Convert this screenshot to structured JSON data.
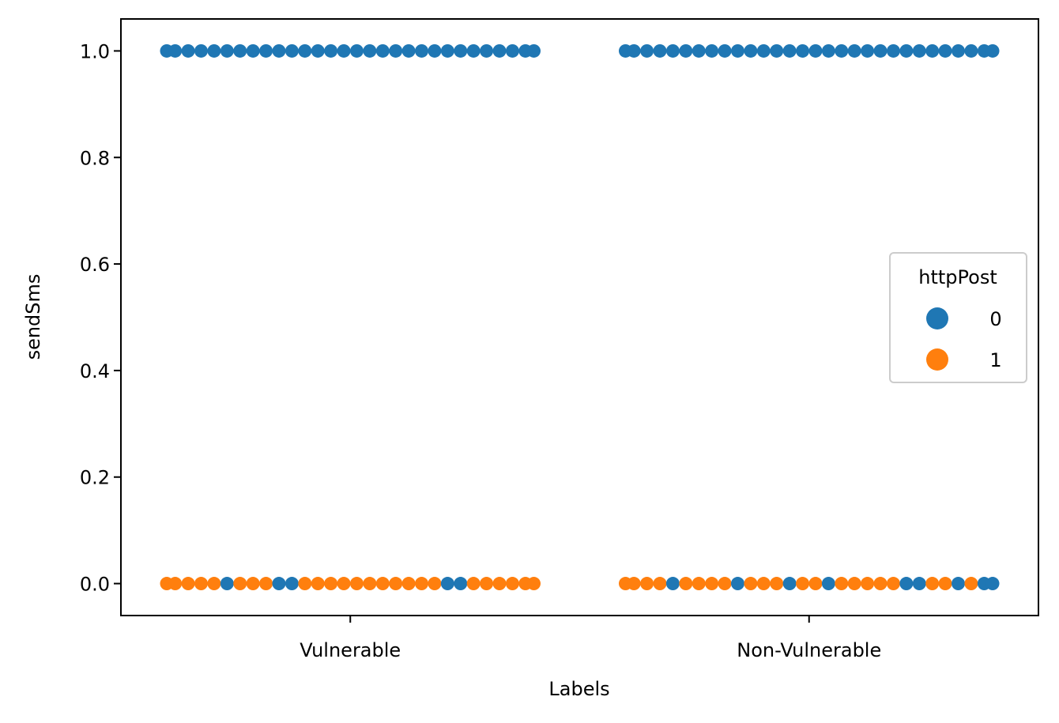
{
  "chart_data": {
    "type": "scatter",
    "subtype": "swarm",
    "title": "",
    "xlabel": "Labels",
    "ylabel": "sendSms",
    "categories": [
      "Vulnerable",
      "Non-Vulnerable"
    ],
    "ylim": [
      -0.06,
      1.06
    ],
    "yticks": [
      0.0,
      0.2,
      0.4,
      0.6,
      0.8,
      1.0
    ],
    "ytick_labels": [
      "0.0",
      "0.2",
      "0.4",
      "0.6",
      "0.8",
      "1.0"
    ],
    "grid": false,
    "legend": {
      "title": "httpPost",
      "placement": "center-right",
      "entries": [
        {
          "label": "0",
          "color": "#1f77b4"
        },
        {
          "label": "1",
          "color": "#ff7f0e"
        }
      ]
    },
    "series_colors": {
      "0": "#1f77b4",
      "1": "#ff7f0e"
    },
    "rows": [
      {
        "category": "Vulnerable",
        "sendSms": 1.0,
        "httpPost": [
          0,
          0,
          0,
          0,
          0,
          0,
          0,
          0,
          0,
          0,
          0,
          0,
          0,
          0,
          0,
          0,
          0,
          0,
          0,
          0,
          0,
          0,
          0,
          0,
          0,
          0,
          0,
          0,
          0,
          0
        ]
      },
      {
        "category": "Vulnerable",
        "sendSms": 0.0,
        "httpPost": [
          1,
          1,
          1,
          1,
          1,
          0,
          1,
          1,
          1,
          0,
          0,
          1,
          1,
          1,
          1,
          1,
          1,
          1,
          1,
          1,
          1,
          1,
          0,
          0,
          1,
          1,
          1,
          1,
          1,
          1
        ]
      },
      {
        "category": "Non-Vulnerable",
        "sendSms": 1.0,
        "httpPost": [
          0,
          0,
          0,
          0,
          0,
          0,
          0,
          0,
          0,
          0,
          0,
          0,
          0,
          0,
          0,
          0,
          0,
          0,
          0,
          0,
          0,
          0,
          0,
          0,
          0,
          0,
          0,
          0,
          0,
          0
        ]
      },
      {
        "category": "Non-Vulnerable",
        "sendSms": 0.0,
        "httpPost": [
          1,
          1,
          1,
          1,
          0,
          1,
          1,
          1,
          1,
          0,
          1,
          1,
          1,
          0,
          1,
          1,
          0,
          1,
          1,
          1,
          1,
          1,
          0,
          0,
          1,
          1,
          0,
          1,
          0,
          0
        ]
      }
    ]
  }
}
